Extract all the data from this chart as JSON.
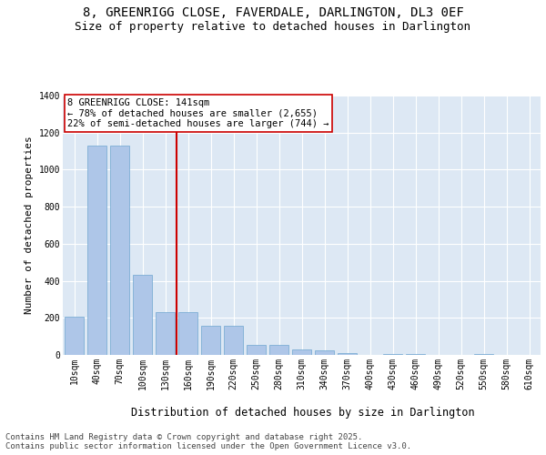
{
  "title_line1": "8, GREENRIGG CLOSE, FAVERDALE, DARLINGTON, DL3 0EF",
  "title_line2": "Size of property relative to detached houses in Darlington",
  "xlabel": "Distribution of detached houses by size in Darlington",
  "ylabel": "Number of detached properties",
  "categories": [
    "10sqm",
    "40sqm",
    "70sqm",
    "100sqm",
    "130sqm",
    "160sqm",
    "190sqm",
    "220sqm",
    "250sqm",
    "280sqm",
    "310sqm",
    "340sqm",
    "370sqm",
    "400sqm",
    "430sqm",
    "460sqm",
    "490sqm",
    "520sqm",
    "550sqm",
    "580sqm",
    "610sqm"
  ],
  "values": [
    205,
    1130,
    1130,
    430,
    230,
    230,
    155,
    155,
    55,
    55,
    30,
    25,
    10,
    0,
    5,
    5,
    0,
    0,
    5,
    0,
    0
  ],
  "bar_color": "#aec6e8",
  "bar_edge_color": "#6ea6d0",
  "vline_color": "#cc0000",
  "annotation_text": "8 GREENRIGG CLOSE: 141sqm\n← 78% of detached houses are smaller (2,655)\n22% of semi-detached houses are larger (744) →",
  "annotation_box_color": "white",
  "annotation_box_edge": "#cc0000",
  "ylim": [
    0,
    1400
  ],
  "background_color": "#dde8f4",
  "grid_color": "white",
  "footer_text": "Contains HM Land Registry data © Crown copyright and database right 2025.\nContains public sector information licensed under the Open Government Licence v3.0.",
  "title_fontsize": 10,
  "subtitle_fontsize": 9,
  "xlabel_fontsize": 8.5,
  "ylabel_fontsize": 8,
  "tick_fontsize": 7,
  "footer_fontsize": 6.5,
  "ann_fontsize": 7.5
}
